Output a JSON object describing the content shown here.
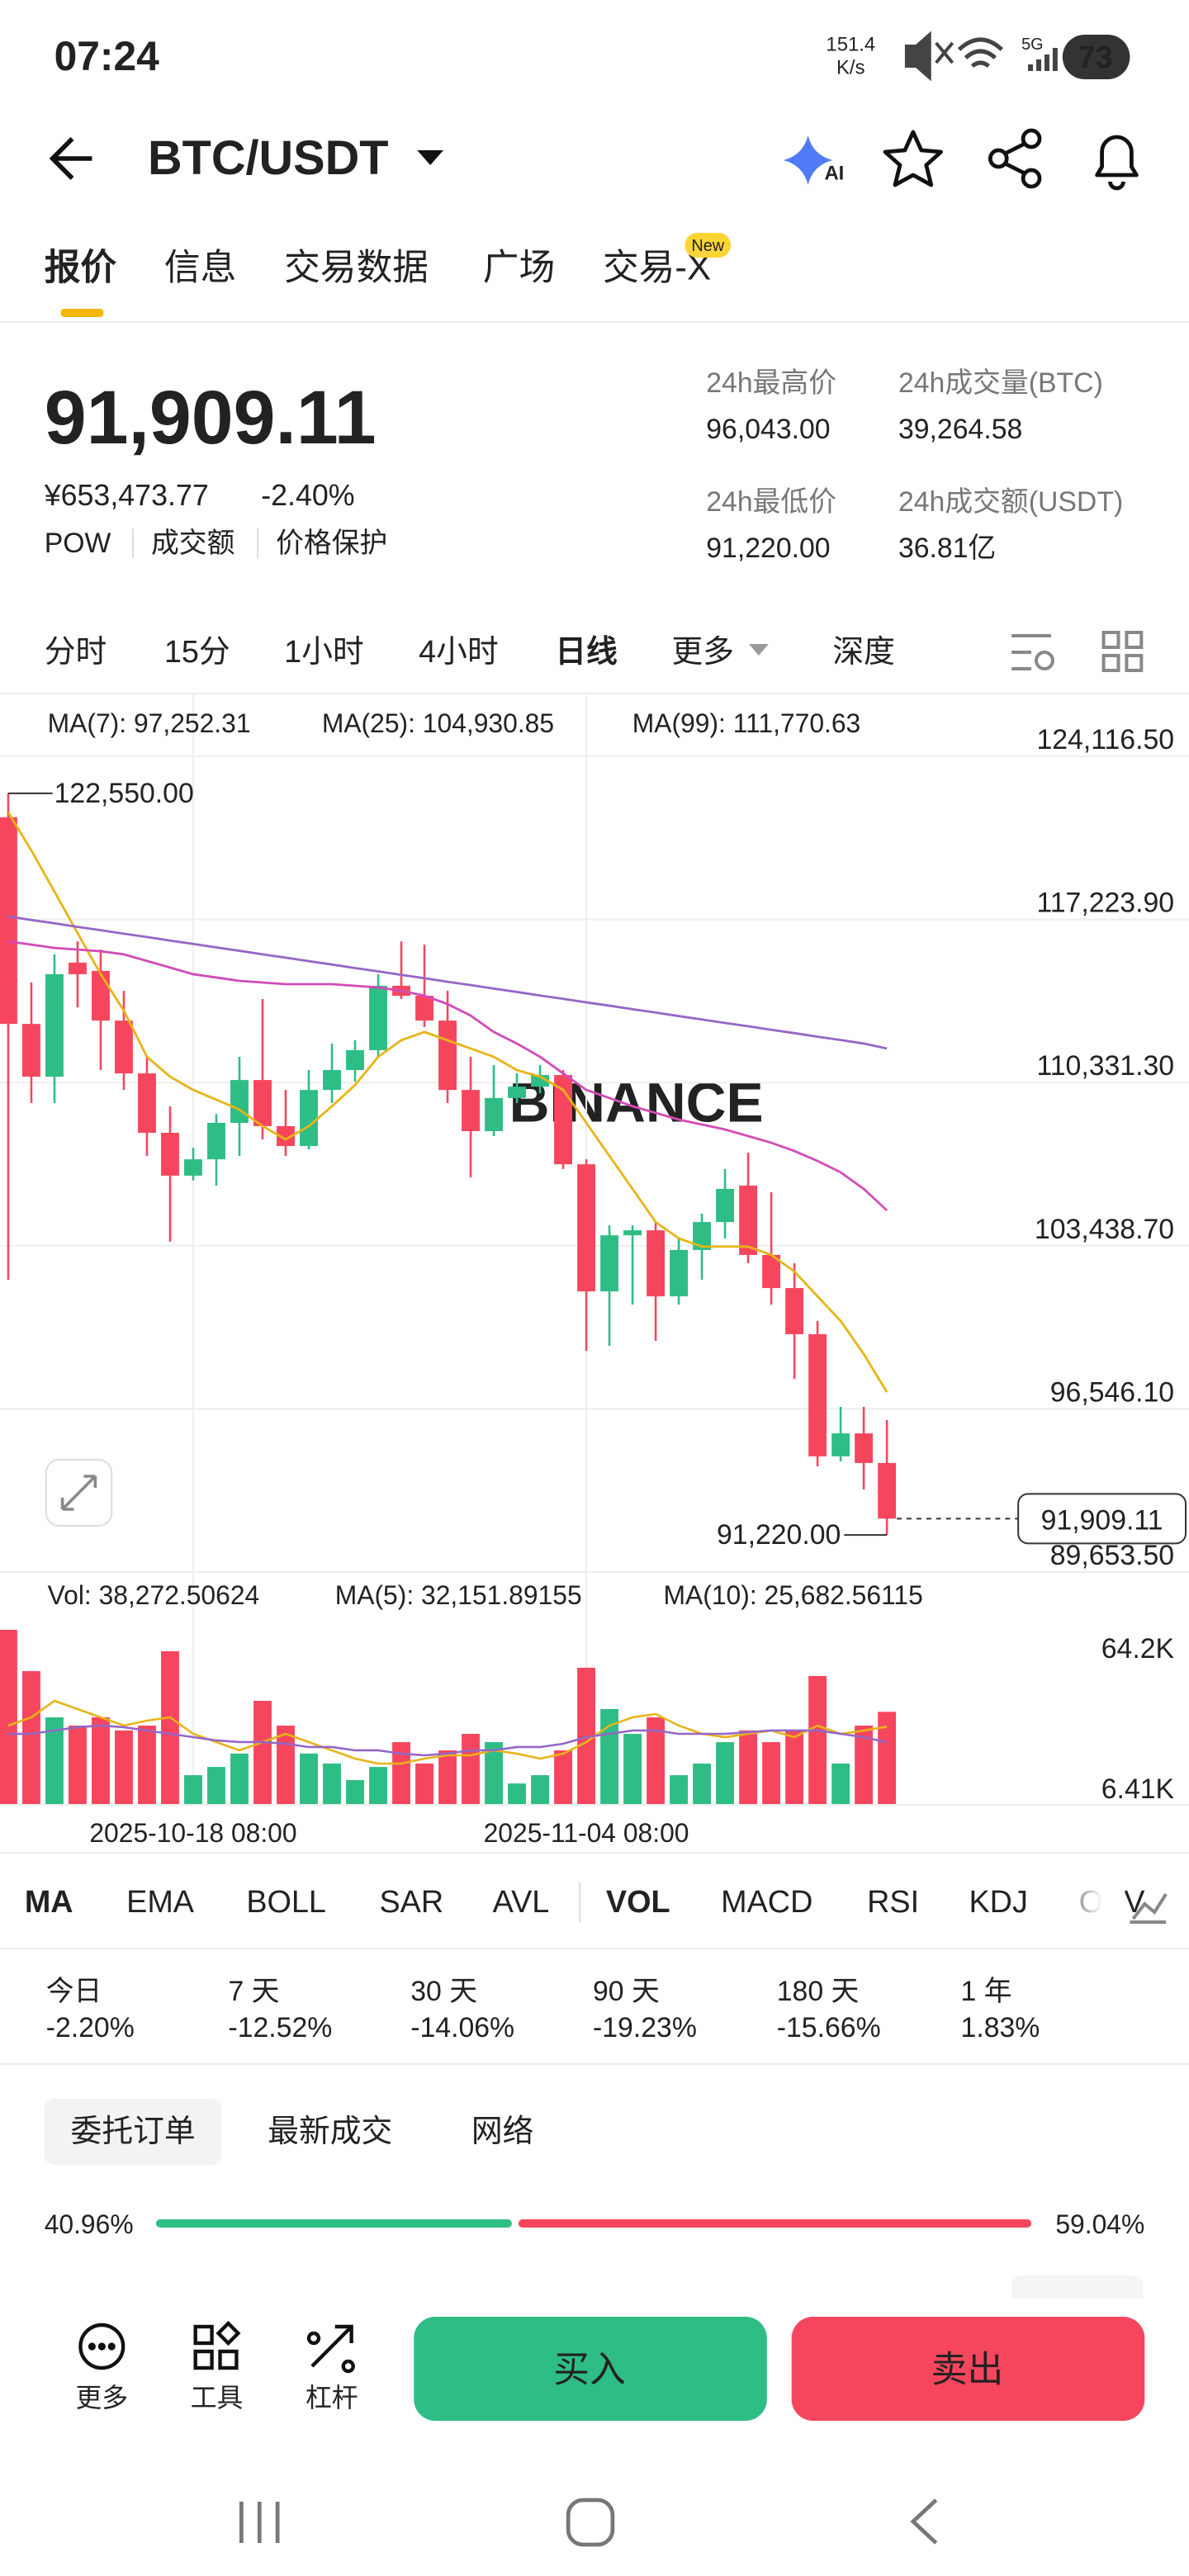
{
  "status_bar": {
    "time": "07:24",
    "speed": "151.4",
    "speed_unit": "K/s",
    "network": "5G",
    "battery": "73"
  },
  "header": {
    "pair": "BTC/USDT",
    "ai_badge": "AI"
  },
  "tabs": [
    {
      "label": "报价"
    },
    {
      "label": "信息"
    },
    {
      "label": "交易数据"
    },
    {
      "label": "广场"
    },
    {
      "label": "交易-X",
      "badge": "New"
    }
  ],
  "price": {
    "last": "91,909.11",
    "cny": "¥653,473.77",
    "change": "-2.40%",
    "tags": [
      "POW",
      "成交额",
      "价格保护"
    ]
  },
  "stats": [
    {
      "label": "24h最高价",
      "value": "96,043.00"
    },
    {
      "label": "24h成交量(BTC)",
      "value": "39,264.58"
    },
    {
      "label": "24h最低价",
      "value": "91,220.00"
    },
    {
      "label": "24h成交额(USDT)",
      "value": "36.81亿"
    }
  ],
  "intervals": [
    "分时",
    "15分",
    "1小时",
    "4小时",
    "日线",
    "更多",
    "深度"
  ],
  "chart_data": [
    {
      "type": "candlestick",
      "watermark": "BINANCE",
      "up_color": "#2ebd85",
      "down_color": "#f6465d",
      "categories": [
        null,
        null,
        null,
        null,
        null,
        null,
        null,
        null,
        "2025-10-18 08:00",
        null,
        null,
        null,
        null,
        null,
        null,
        null,
        null,
        null,
        null,
        null,
        null,
        null,
        null,
        null,
        null,
        "2025-11-04 08:00",
        null,
        null,
        null,
        null,
        null,
        null,
        null,
        null,
        null,
        null,
        null,
        null,
        null
      ],
      "open": [
        121540,
        112810,
        110580,
        115400,
        115050,
        112950,
        110720,
        108210,
        106400,
        107090,
        108630,
        110440,
        108490,
        107650,
        110020,
        110860,
        111700,
        114420,
        114000,
        112950,
        110020,
        108280,
        109680,
        110160,
        110650,
        106880,
        101510,
        103880,
        104090,
        101300,
        103260,
        104440,
        105980,
        103050,
        101650,
        99700,
        94540,
        95510,
        94260
      ],
      "high": [
        122550,
        114560,
        115750,
        116300,
        115950,
        114210,
        111420,
        109330,
        107580,
        109000,
        111420,
        113860,
        110020,
        110860,
        111980,
        112120,
        114910,
        116300,
        116160,
        114210,
        111420,
        111070,
        110720,
        111070,
        110860,
        107090,
        104300,
        104300,
        104440,
        103750,
        104790,
        106680,
        107370,
        105700,
        102700,
        100260,
        96630,
        96630,
        96070
      ],
      "low": [
        102000,
        109470,
        109470,
        113510,
        110860,
        110020,
        107230,
        103610,
        106190,
        105980,
        107230,
        107930,
        107230,
        107510,
        109470,
        110370,
        111420,
        113860,
        112680,
        109470,
        106330,
        108070,
        109470,
        109880,
        106680,
        99000,
        99210,
        100950,
        99420,
        100950,
        102000,
        103750,
        102700,
        100950,
        97810,
        94120,
        94330,
        93140,
        91220
      ],
      "close": [
        112810,
        110580,
        114910,
        114910,
        112950,
        110720,
        108210,
        106400,
        107090,
        108630,
        110440,
        108490,
        107650,
        110020,
        110860,
        111700,
        114420,
        114000,
        112950,
        110020,
        108280,
        109680,
        110160,
        110650,
        106880,
        101510,
        103880,
        104090,
        101300,
        103260,
        104440,
        105840,
        103050,
        101650,
        99700,
        94540,
        95510,
        94260,
        91909.11
      ],
      "ma": [
        {
          "name": "MA(7)",
          "legend_label": "MA(7): 97,252.31",
          "color": "#e8b416",
          "values": [
            121750,
            120140,
            118400,
            116650,
            114910,
            113370,
            111420,
            110580,
            110020,
            109610,
            109190,
            108490,
            107930,
            108490,
            109330,
            110230,
            111420,
            112120,
            112470,
            112120,
            111770,
            111420,
            110860,
            110580,
            110020,
            108630,
            107230,
            105840,
            104440,
            103750,
            103400,
            103400,
            103400,
            103050,
            102350,
            101300,
            100260,
            98860,
            97252.31
          ]
        },
        {
          "name": "MA(25)",
          "legend_label": "MA(25): 104,930.85",
          "color": "#d24cb6",
          "values": [
            116300,
            116160,
            116020,
            115950,
            115880,
            115750,
            115470,
            115190,
            114910,
            114770,
            114630,
            114560,
            114490,
            114490,
            114490,
            114420,
            114350,
            114210,
            114000,
            113650,
            113160,
            112470,
            111980,
            111420,
            110720,
            110020,
            109680,
            109330,
            109050,
            108770,
            108560,
            108350,
            108070,
            107790,
            107440,
            107020,
            106540,
            105840,
            104930.85
          ]
        },
        {
          "name": "MA(99)",
          "legend_label": "MA(99): 111,770.63",
          "color": "#9467c6",
          "values": [
            117350,
            117200,
            117060,
            116910,
            116770,
            116620,
            116480,
            116330,
            116190,
            116040,
            115900,
            115750,
            115610,
            115460,
            115320,
            115170,
            115030,
            114880,
            114740,
            114590,
            114450,
            114300,
            114160,
            114010,
            113870,
            113720,
            113580,
            113430,
            113290,
            113140,
            113000,
            112850,
            112710,
            112560,
            112420,
            112270,
            112130,
            111980,
            111770.63
          ]
        }
      ],
      "ylim": [
        89653.5,
        124116.5
      ],
      "yticks": [
        {
          "value": 124116.5,
          "label": "124,116.50"
        },
        {
          "value": 117223.9,
          "label": "117,223.90"
        },
        {
          "value": 110331.3,
          "label": "110,331.30"
        },
        {
          "value": 103438.7,
          "label": "103,438.70"
        },
        {
          "value": 96546.1,
          "label": "96,546.10"
        },
        {
          "value": 89653.5,
          "label": "89,653.50"
        }
      ],
      "grid": true,
      "annotations": {
        "high": {
          "value": 122550,
          "label": "122,550.00"
        },
        "low": {
          "value": 91220,
          "label": "91,220.00"
        },
        "last": {
          "value": 91909.11,
          "label": "91,909.11"
        }
      }
    },
    {
      "type": "bar",
      "legend_label": "Vol: 38,272.50624",
      "values": [
        72000,
        55000,
        36000,
        32600,
        36000,
        30600,
        32600,
        63200,
        12200,
        15600,
        21100,
        42800,
        32600,
        21100,
        17000,
        10200,
        15600,
        25800,
        17000,
        22400,
        29200,
        25800,
        8800,
        12200,
        22400,
        56400,
        39400,
        29200,
        36000,
        12200,
        17000,
        25800,
        30600,
        25800,
        30600,
        53000,
        17000,
        32600,
        38272.50624
      ],
      "ma": [
        {
          "name": "MA(5)",
          "legend_label": "MA(5): 32,151.89155",
          "color": "#e8b416",
          "values": [
            32610,
            36010,
            42800,
            39400,
            36010,
            32610,
            34650,
            36010,
            29210,
            25820,
            22420,
            25820,
            29210,
            25820,
            22420,
            19020,
            16980,
            16980,
            19020,
            20380,
            20380,
            22420,
            21060,
            19020,
            21060,
            25820,
            32610,
            36010,
            37360,
            32610,
            29210,
            27850,
            29210,
            30570,
            27850,
            32610,
            29210,
            30570,
            32151.89155
          ]
        },
        {
          "name": "MA(10)",
          "legend_label": "MA(10): 25,682.56115",
          "color": "#9467c6",
          "values": [
            29210,
            29210,
            30570,
            31930,
            32610,
            31930,
            30570,
            29210,
            27850,
            26500,
            25820,
            25820,
            25140,
            23780,
            23780,
            22420,
            22420,
            21060,
            20380,
            21060,
            22420,
            22420,
            23780,
            23780,
            25140,
            27850,
            29210,
            30570,
            30570,
            29210,
            29210,
            29210,
            29890,
            30570,
            30570,
            30570,
            29210,
            27850,
            25682.56115
          ]
        }
      ],
      "ylim": [
        0,
        72000
      ],
      "yticks": [
        {
          "value": 64200,
          "label": "64.2K"
        },
        {
          "value": 6410,
          "label": "6.41K"
        }
      ]
    }
  ],
  "indicators": [
    "MA",
    "EMA",
    "BOLL",
    "SAR",
    "AVL",
    "VOL",
    "MACD",
    "RSI",
    "KDJ",
    "OBV"
  ],
  "performance": [
    {
      "period": "今日",
      "change": "-2.20%",
      "color": "#f6465d"
    },
    {
      "period": "7 天",
      "change": "-12.52%",
      "color": "#f6465d"
    },
    {
      "period": "30 天",
      "change": "-14.06%",
      "color": "#f6465d"
    },
    {
      "period": "90 天",
      "change": "-19.23%",
      "color": "#f6465d"
    },
    {
      "period": "180 天",
      "change": "-15.66%",
      "color": "#f6465d"
    },
    {
      "period": "1 年",
      "change": "1.83%",
      "color": "#2ebd85"
    }
  ],
  "order_tabs": [
    "委托订单",
    "最新成交",
    "网络"
  ],
  "depth_ratio": {
    "buy": {
      "value": 40.96,
      "label": "40.96%"
    },
    "sell": {
      "value": 59.04,
      "label": "59.04%"
    }
  },
  "bottom_bar": {
    "tools": [
      "更多",
      "工具",
      "杠杆"
    ],
    "buy": "买入",
    "sell": "卖出"
  }
}
